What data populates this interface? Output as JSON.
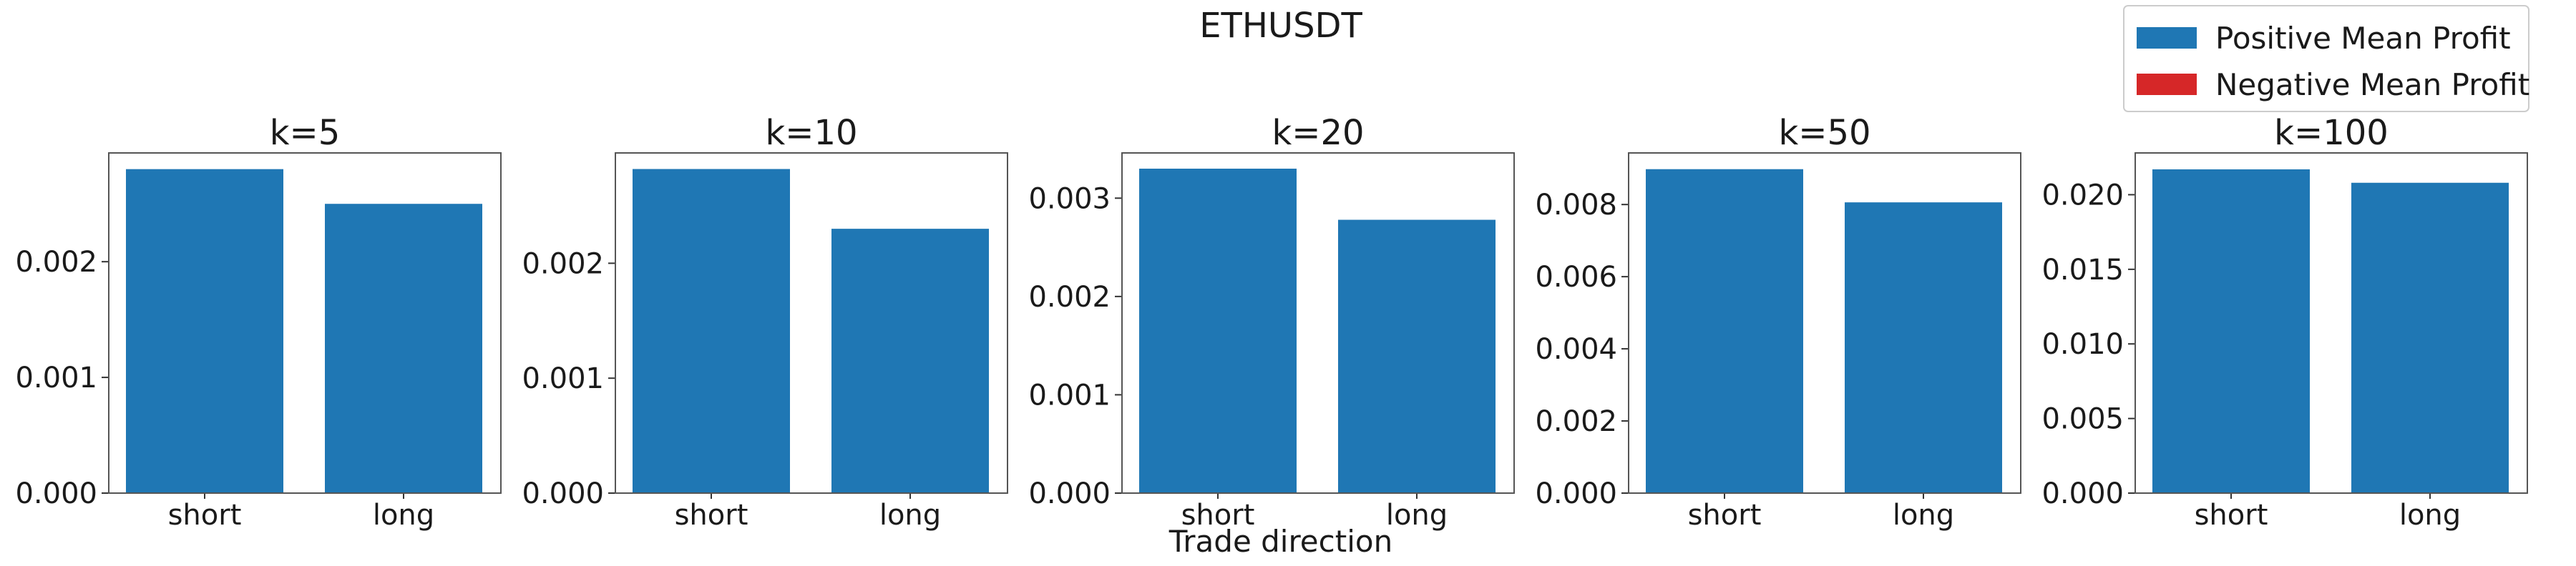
{
  "figure": {
    "title": "ETHUSDT",
    "xlabel": "Trade direction"
  },
  "legend": {
    "placement": "top-right",
    "items": [
      {
        "label": "Positive Mean Profit",
        "color": "#1f77b4"
      },
      {
        "label": "Negative Mean Profit",
        "color": "#d62728"
      }
    ]
  },
  "chart_data": [
    {
      "type": "bar",
      "title": "k=5",
      "categories": [
        "short",
        "long"
      ],
      "values": [
        0.0028,
        0.0025
      ],
      "ylim": [
        0,
        0.00294
      ],
      "yticks": [
        "0.000",
        "0.001",
        "0.002"
      ],
      "ytick_values": [
        0,
        0.001,
        0.002
      ],
      "color": "#1f77b4"
    },
    {
      "type": "bar",
      "title": "k=10",
      "categories": [
        "short",
        "long"
      ],
      "values": [
        0.00282,
        0.0023
      ],
      "ylim": [
        0,
        0.00296
      ],
      "yticks": [
        "0.000",
        "0.001",
        "0.002"
      ],
      "ytick_values": [
        0,
        0.001,
        0.002
      ],
      "color": "#1f77b4"
    },
    {
      "type": "bar",
      "title": "k=20",
      "categories": [
        "short",
        "long"
      ],
      "values": [
        0.0033,
        0.00278
      ],
      "ylim": [
        0,
        0.00346
      ],
      "yticks": [
        "0.000",
        "0.001",
        "0.002",
        "0.003"
      ],
      "ytick_values": [
        0,
        0.001,
        0.002,
        0.003
      ],
      "color": "#1f77b4"
    },
    {
      "type": "bar",
      "title": "k=50",
      "categories": [
        "short",
        "long"
      ],
      "values": [
        0.00898,
        0.00806
      ],
      "ylim": [
        0,
        0.00943
      ],
      "yticks": [
        "0.000",
        "0.002",
        "0.004",
        "0.006",
        "0.008"
      ],
      "ytick_values": [
        0,
        0.002,
        0.004,
        0.006,
        0.008
      ],
      "color": "#1f77b4"
    },
    {
      "type": "bar",
      "title": "k=100",
      "categories": [
        "short",
        "long"
      ],
      "values": [
        0.0217,
        0.0208
      ],
      "ylim": [
        0,
        0.0228
      ],
      "yticks": [
        "0.000",
        "0.005",
        "0.010",
        "0.015",
        "0.020"
      ],
      "ytick_values": [
        0,
        0.005,
        0.01,
        0.015,
        0.02
      ],
      "color": "#1f77b4"
    }
  ]
}
